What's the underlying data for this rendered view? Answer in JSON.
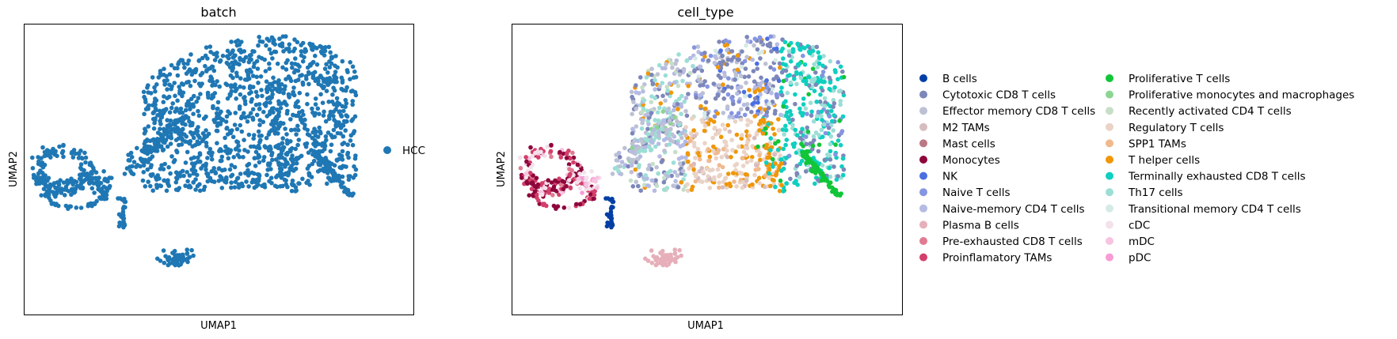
{
  "chart_data": [
    {
      "type": "scatter",
      "title": "batch",
      "xlabel": "UMAP1",
      "ylabel": "UMAP2",
      "grid": false,
      "ticks": false,
      "legend_position": "right",
      "series": [
        {
          "name": "HCC",
          "color": "#1f77b4",
          "n_points": 1400
        }
      ]
    },
    {
      "type": "scatter",
      "title": "cell_type",
      "xlabel": "UMAP1",
      "ylabel": "UMAP2",
      "grid": false,
      "ticks": false,
      "legend_position": "right",
      "legend_columns": 2,
      "series": [
        {
          "name": "B cells",
          "color": "#023fa5"
        },
        {
          "name": "Cytotoxic CD8 T cells",
          "color": "#7d87b9"
        },
        {
          "name": "Effector memory CD8 T cells",
          "color": "#bec1d4"
        },
        {
          "name": "M2 TAMs",
          "color": "#d6bcc0"
        },
        {
          "name": "Mast cells",
          "color": "#bb7784"
        },
        {
          "name": "Monocytes",
          "color": "#8e063b"
        },
        {
          "name": "NK",
          "color": "#4a6fe3"
        },
        {
          "name": "Naive T cells",
          "color": "#8595e1"
        },
        {
          "name": "Naive-memory CD4 T cells",
          "color": "#b5bbe3"
        },
        {
          "name": "Plasma B cells",
          "color": "#e6afb9"
        },
        {
          "name": "Pre-exhausted CD8 T cells",
          "color": "#e07b91"
        },
        {
          "name": "Proinflamatory TAMs",
          "color": "#d33f6a"
        },
        {
          "name": "Proliferative T cells",
          "color": "#11c638"
        },
        {
          "name": "Proliferative monocytes and macrophages",
          "color": "#8dd593"
        },
        {
          "name": "Recently activated CD4 T cells",
          "color": "#c6dec7"
        },
        {
          "name": "Regulatory T cells",
          "color": "#ead3c6"
        },
        {
          "name": "SPP1 TAMs",
          "color": "#f0b98d"
        },
        {
          "name": "T helper cells",
          "color": "#ef9708"
        },
        {
          "name": "Terminally exhausted CD8 T cells",
          "color": "#0fcfc0"
        },
        {
          "name": "Th17 cells",
          "color": "#9cded6"
        },
        {
          "name": "Transitional memory CD4 T cells",
          "color": "#d5eae7"
        },
        {
          "name": "cDC",
          "color": "#f3e1eb"
        },
        {
          "name": "mDC",
          "color": "#f6c4e1"
        },
        {
          "name": "pDC",
          "color": "#f79cd4"
        }
      ]
    }
  ]
}
